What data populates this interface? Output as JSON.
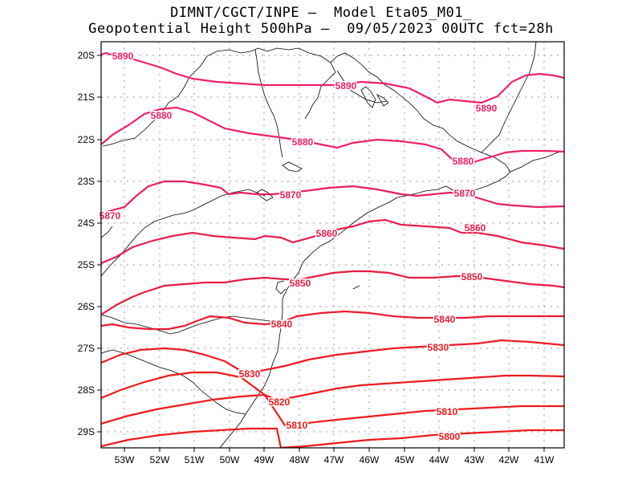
{
  "title": {
    "line1": "DIMNT/CGCT/INPE –  Model Eta05_M01_",
    "line2": "Geopotential Height 500hPa –  09/05/2023 00UTC fct=28h"
  },
  "axes": {
    "lat_labels": [
      "20S",
      "21S",
      "22S",
      "23S",
      "24S",
      "25S",
      "26S",
      "27S",
      "28S",
      "29S"
    ],
    "lon_labels": [
      "53W",
      "52W",
      "51W",
      "50W",
      "49W",
      "48W",
      "47W",
      "46W",
      "45W",
      "44W",
      "43W",
      "42W",
      "41W"
    ]
  },
  "colors": {
    "contour_5890": "#f0206a",
    "contour_5880": "#f0206a",
    "contour_5870": "#ea1f5a",
    "contour_5860": "#e81e4e",
    "contour_5850": "#e81c40",
    "contour_5840": "#ec1c30",
    "contour_5830": "#ee1a24",
    "contour_5820": "#ef1a1a",
    "contour_5810": "#ef1a1a",
    "contour_5800": "#ef1a1a",
    "coast": "#000000",
    "grid": "#999999"
  },
  "contour_labels": [
    {
      "text": "5890"
    },
    {
      "text": "5890"
    },
    {
      "text": "5890"
    },
    {
      "text": "5880"
    },
    {
      "text": "5880"
    },
    {
      "text": "5880"
    },
    {
      "text": "5870"
    },
    {
      "text": "5870"
    },
    {
      "text": "5870"
    },
    {
      "text": "5860"
    },
    {
      "text": "5860"
    },
    {
      "text": "5850"
    },
    {
      "text": "5850"
    },
    {
      "text": "5840"
    },
    {
      "text": "5840"
    },
    {
      "text": "5830"
    },
    {
      "text": "5830"
    },
    {
      "text": "5820"
    },
    {
      "text": "5810"
    },
    {
      "text": "5810"
    },
    {
      "text": "5800"
    }
  ]
}
